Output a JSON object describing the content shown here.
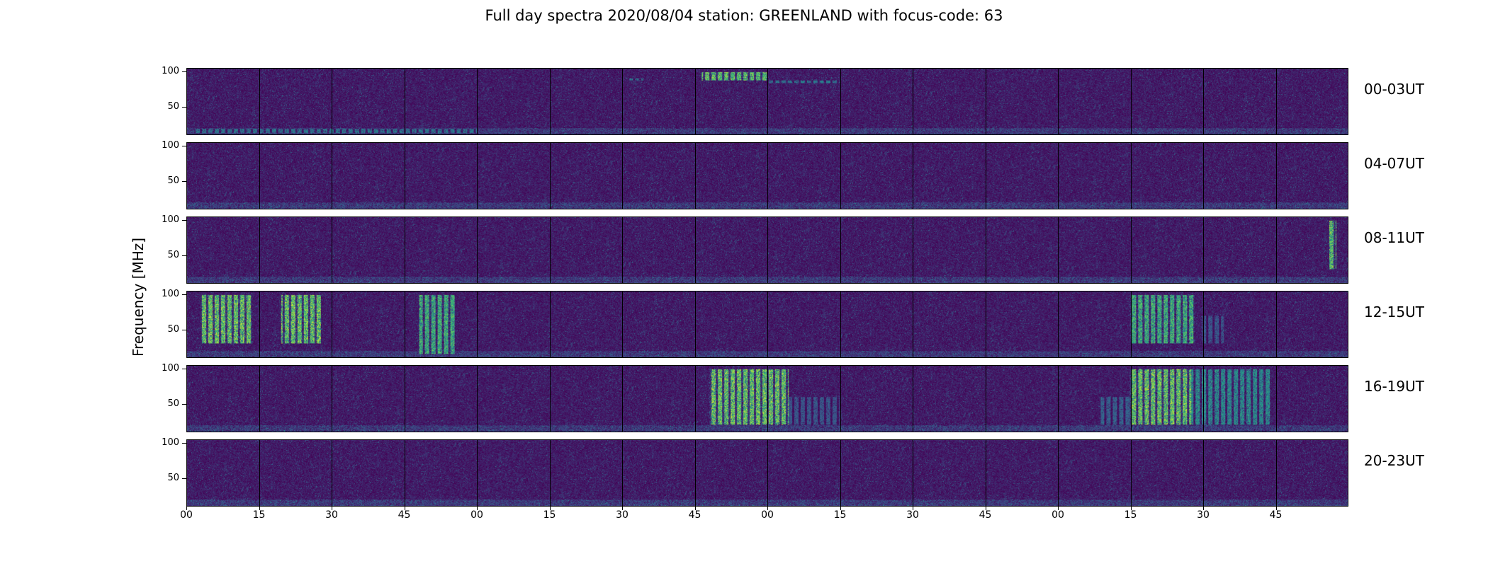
{
  "title": "Full day spectra 2020/08/04 station: GREENLAND with focus-code: 63",
  "ylabel": "Frequency [MHz]",
  "rows": [
    "00-03UT",
    "04-07UT",
    "08-11UT",
    "12-15UT",
    "16-19UT",
    "20-23UT"
  ],
  "yticks": [
    "100",
    "50"
  ],
  "xticks": [
    "00",
    "15",
    "30",
    "45",
    "00",
    "15",
    "30",
    "45",
    "00",
    "15",
    "30",
    "45",
    "00",
    "15",
    "30",
    "45"
  ],
  "colors": {
    "background_purple": "#440154",
    "bright_yellow": "#fde725",
    "green": "#35b779",
    "teal": "#21918c"
  },
  "chart_data": {
    "type": "heatmap",
    "title": "Full day spectra 2020/08/04 station: GREENLAND with focus-code: 63",
    "ylabel": "Frequency [MHz]",
    "xlabel": "",
    "ylim": [
      10,
      105
    ],
    "rows": [
      "00-03UT",
      "04-07UT",
      "08-11UT",
      "12-15UT",
      "16-19UT",
      "20-23UT"
    ],
    "segments_per_row": 16,
    "segment_minutes": 15,
    "colormap": "viridis",
    "bursts": [
      {
        "row": 0,
        "t0": 7.1,
        "t1": 8.0,
        "f0": 88,
        "f1": 100,
        "intensity": 0.9
      },
      {
        "row": 0,
        "t0": 8.0,
        "t1": 9.0,
        "f0": 84,
        "f1": 88,
        "intensity": 0.5
      },
      {
        "row": 0,
        "t0": 6.1,
        "t1": 6.3,
        "f0": 88,
        "f1": 91,
        "intensity": 0.5
      },
      {
        "row": 0,
        "t0": 0.1,
        "t1": 4.0,
        "f0": 12,
        "f1": 18,
        "intensity": 0.5
      },
      {
        "row": 2,
        "t0": 15.75,
        "t1": 15.85,
        "f0": 30,
        "f1": 100,
        "intensity": 0.9
      },
      {
        "row": 3,
        "t0": 0.2,
        "t1": 0.9,
        "f0": 30,
        "f1": 100,
        "intensity": 0.95
      },
      {
        "row": 3,
        "t0": 1.3,
        "t1": 1.85,
        "f0": 30,
        "f1": 100,
        "intensity": 0.95
      },
      {
        "row": 3,
        "t0": 3.2,
        "t1": 3.7,
        "f0": 15,
        "f1": 100,
        "intensity": 0.8
      },
      {
        "row": 3,
        "t0": 13.0,
        "t1": 13.9,
        "f0": 30,
        "f1": 100,
        "intensity": 0.8
      },
      {
        "row": 3,
        "t0": 14.0,
        "t1": 14.3,
        "f0": 30,
        "f1": 70,
        "intensity": 0.35
      },
      {
        "row": 4,
        "t0": 7.2,
        "t1": 8.3,
        "f0": 20,
        "f1": 100,
        "intensity": 0.95
      },
      {
        "row": 4,
        "t0": 8.3,
        "t1": 9.0,
        "f0": 20,
        "f1": 60,
        "intensity": 0.35
      },
      {
        "row": 4,
        "t0": 12.6,
        "t1": 13.0,
        "f0": 20,
        "f1": 60,
        "intensity": 0.4
      },
      {
        "row": 4,
        "t0": 13.0,
        "t1": 13.85,
        "f0": 20,
        "f1": 100,
        "intensity": 0.95
      },
      {
        "row": 4,
        "t0": 13.85,
        "t1": 14.95,
        "f0": 20,
        "f1": 100,
        "intensity": 0.6
      }
    ]
  }
}
